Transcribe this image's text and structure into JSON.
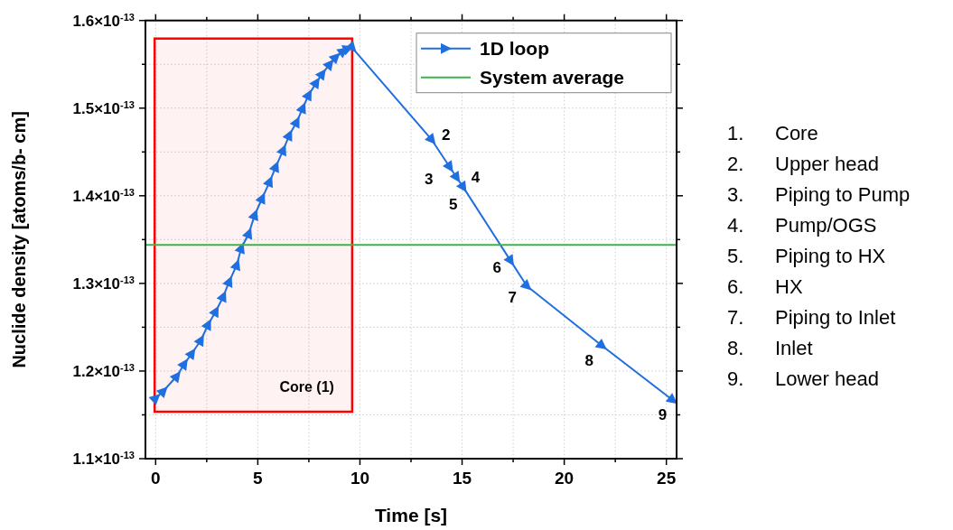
{
  "chart_data": {
    "type": "line",
    "xlabel": "Time [s]",
    "ylabel": "Nuclide density [atoms/b- cm]",
    "xlim": [
      -0.5,
      25.5
    ],
    "ylim": [
      1.1e-13,
      1.6e-13
    ],
    "xticks": [
      0,
      {
        "value": 2.5,
        "label": null
      },
      5,
      {
        "value": 7.5,
        "label": null
      },
      10,
      {
        "value": 12.5,
        "label": null
      },
      15,
      {
        "value": 17.5,
        "label": null
      },
      20,
      {
        "value": 22.5,
        "label": null
      },
      25
    ],
    "yticks": [
      {
        "value": 1.1e-13,
        "label": "1.1×10$^{-13}$"
      },
      {
        "value": 1.15e-13,
        "label": null
      },
      {
        "value": 1.2e-13,
        "label": "1.2×10$^{-13}$"
      },
      {
        "value": 1.25e-13,
        "label": null
      },
      {
        "value": 1.3e-13,
        "label": "1.3×10$^{-13}$"
      },
      {
        "value": 1.35e-13,
        "label": null
      },
      {
        "value": 1.4e-13,
        "label": "1.4×10$^{-13}$"
      },
      {
        "value": 1.45e-13,
        "label": null
      },
      {
        "value": 1.5e-13,
        "label": "1.5×10$^{-13}$"
      },
      {
        "value": 1.55e-13,
        "label": null
      },
      {
        "value": 1.6e-13,
        "label": "1.6×10$^{-13}$"
      }
    ],
    "grid": true,
    "legend": "top right",
    "line_style": "solid",
    "series": [
      {
        "name": "1D loop",
        "color": "#1f6fe0",
        "marker": "triangle",
        "x": [
          0,
          0.37,
          1.03,
          1.4,
          1.77,
          2.21,
          2.57,
          2.94,
          3.31,
          3.6,
          3.97,
          4.19,
          4.56,
          4.85,
          5.21,
          5.58,
          5.88,
          6.24,
          6.54,
          6.9,
          7.2,
          7.49,
          7.86,
          8.15,
          8.52,
          8.81,
          9.18,
          9.4,
          9.62,
          13.51,
          14.39,
          14.73,
          15.05,
          17.37,
          18.17,
          21.84,
          25.3
        ],
        "values": [
          1.169e-13,
          1.177e-13,
          1.194e-13,
          1.208e-13,
          1.22e-13,
          1.235e-13,
          1.253e-13,
          1.268e-13,
          1.285e-13,
          1.302e-13,
          1.321e-13,
          1.34e-13,
          1.357e-13,
          1.378e-13,
          1.397e-13,
          1.416e-13,
          1.433e-13,
          1.452e-13,
          1.469e-13,
          1.484e-13,
          1.5e-13,
          1.515e-13,
          1.529e-13,
          1.539e-13,
          1.55e-13,
          1.558e-13,
          1.565e-13,
          1.568e-13,
          1.569e-13,
          1.464e-13,
          1.433e-13,
          1.421e-13,
          1.41e-13,
          1.326e-13,
          1.297e-13,
          1.229e-13,
          1.167e-13
        ]
      },
      {
        "name": "System average",
        "color": "#3cb44b",
        "marker": "none",
        "x": [
          -0.5,
          25.5
        ],
        "values": [
          1.344e-13,
          1.344e-13
        ]
      }
    ],
    "bands": [
      {
        "axis": "x",
        "from": -0.05,
        "to": 9.62,
        "label": "Core (1)",
        "color": "#ff0000"
      }
    ],
    "annotations": [
      "2",
      "3",
      "4",
      "5",
      "6",
      "7",
      "8",
      "9",
      "1.\tCore",
      "2.\tUpper head",
      "3.\tPiping to Pump",
      "4.\tPump/OGS",
      "5.\tPiping to HX",
      "6.\tHX",
      "7.\tPiping to Inlet",
      "8.\tInlet",
      "9.\tLower head"
    ]
  }
}
